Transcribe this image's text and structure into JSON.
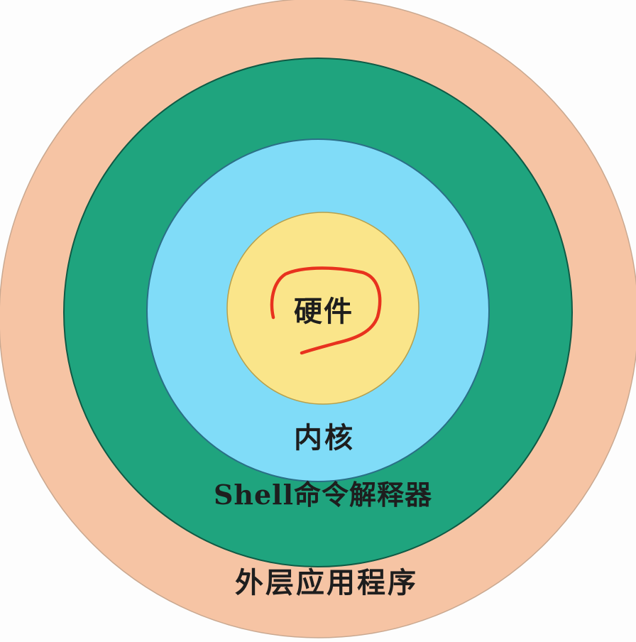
{
  "diagram": {
    "layers": [
      {
        "id": "hardware",
        "label": "硬件",
        "color": "#fae58a"
      },
      {
        "id": "kernel",
        "label": "内核",
        "color": "#80dcf8"
      },
      {
        "id": "shell",
        "label": "Shell命令解释器",
        "color": "#1fa47e"
      },
      {
        "id": "apps",
        "label": "外层应用程序",
        "color": "#f6c4a4"
      }
    ],
    "annotation_color": "#e8321e"
  }
}
